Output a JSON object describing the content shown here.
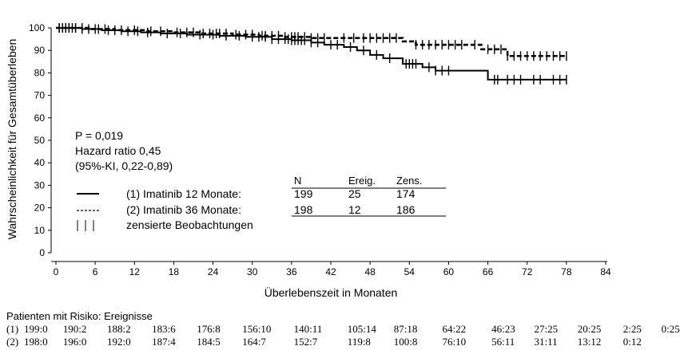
{
  "chart_data": {
    "type": "line",
    "xlabel": "Überlebenszeit in Monaten",
    "ylabel": "Wahrscheinlichkeit für Gesamtüberleben",
    "xlim": [
      0,
      84
    ],
    "ylim": [
      0,
      100
    ],
    "xticks": [
      0,
      6,
      12,
      18,
      24,
      30,
      36,
      42,
      48,
      54,
      60,
      66,
      72,
      78,
      84
    ],
    "yticks": [
      0,
      10,
      20,
      30,
      40,
      50,
      60,
      70,
      80,
      90,
      100
    ],
    "grid": false,
    "step": true,
    "series": [
      {
        "name": "(1) Imatinib 12 Monate:",
        "style": "solid",
        "x": [
          0,
          4,
          7,
          10,
          13,
          16,
          20,
          25,
          29,
          33,
          36,
          39,
          41,
          44,
          46,
          48,
          50,
          53,
          56,
          58,
          61,
          65,
          66,
          78
        ],
        "y": [
          100,
          99.5,
          99,
          98.5,
          98,
          97.5,
          97,
          96.5,
          96,
          95,
          94.5,
          93.5,
          92.5,
          91.5,
          90,
          88,
          86.5,
          84,
          82.5,
          81,
          81,
          81,
          77,
          77
        ],
        "censor_x": [
          0.5,
          1,
          1.5,
          2,
          2.5,
          3,
          4,
          5,
          6.5,
          8,
          9,
          11,
          12.5,
          14,
          17,
          19,
          22,
          24,
          26,
          28,
          30,
          31,
          32,
          33,
          34,
          35,
          35.5,
          36,
          36.5,
          37,
          37.5,
          38,
          39,
          40,
          42,
          43,
          45,
          47,
          49,
          51,
          53.5,
          54,
          54.5,
          55,
          57,
          58,
          59,
          60,
          67,
          67.5,
          69,
          70,
          71,
          73,
          74,
          76,
          77,
          78
        ]
      },
      {
        "name": "(2) Imatinib 36 Monate:",
        "style": "dashed",
        "x": [
          0,
          5,
          9,
          14,
          18,
          22,
          27,
          31,
          35,
          39,
          42,
          45,
          50,
          53,
          55,
          57,
          65,
          69,
          78
        ],
        "y": [
          100,
          99.5,
          99,
          98.5,
          98,
          97.5,
          97,
          96.5,
          96,
          95.5,
          95.5,
          95.5,
          95.5,
          94,
          92.5,
          92.5,
          90.5,
          87.5,
          87.5
        ],
        "censor_x": [
          0.5,
          1,
          1.5,
          2,
          3,
          4,
          6,
          7.5,
          10,
          12,
          14.5,
          16,
          18.5,
          20,
          21,
          22.5,
          23.5,
          24.5,
          25,
          26,
          27.5,
          29,
          30,
          31.5,
          32,
          33,
          34,
          35,
          36,
          36.5,
          37,
          38,
          39,
          40,
          41,
          44,
          45.5,
          47,
          48,
          49,
          50,
          51,
          52,
          55,
          56,
          57,
          58,
          59,
          60,
          61,
          62,
          64,
          66,
          67,
          68,
          69,
          70,
          71,
          72,
          73,
          74,
          75,
          76,
          77,
          78
        ]
      }
    ]
  },
  "annotation": {
    "p_value": "P = 0,019",
    "hazard_ratio": "Hazard ratio 0,45",
    "ci": "(95%-KI, 0,22-0,89)"
  },
  "legend": {
    "col_n": "N",
    "col_events": "Ereig.",
    "col_censored": "Zens.",
    "rows": [
      {
        "sample": "solid",
        "label": "(1) Imatinib 12 Monate:",
        "n": "199",
        "events": "25",
        "censored": "174"
      },
      {
        "sample": "dashed",
        "label": "(2) Imatinib 36 Monate:",
        "n": "198",
        "events": "12",
        "censored": "186"
      },
      {
        "sample": "censor",
        "label": "zensierte Beobachtungen"
      }
    ]
  },
  "risk_table": {
    "title": "Patienten mit Risiko: Ereignisse",
    "rows": [
      {
        "label": "(1)",
        "values": [
          "199:0",
          "190:2",
          "188:2",
          "183:6",
          "176:8",
          "156:10",
          "140:11",
          "105:14",
          "87:18",
          "64:22",
          "46:23",
          "27:25",
          "20:25",
          "2:25",
          "0:25"
        ]
      },
      {
        "label": "(2)",
        "values": [
          "198:0",
          "196:0",
          "192:0",
          "187:4",
          "184:5",
          "164:7",
          "152:7",
          "119:8",
          "100:8",
          "76:10",
          "56:11",
          "31:11",
          "13:12",
          "0:12"
        ]
      }
    ]
  }
}
